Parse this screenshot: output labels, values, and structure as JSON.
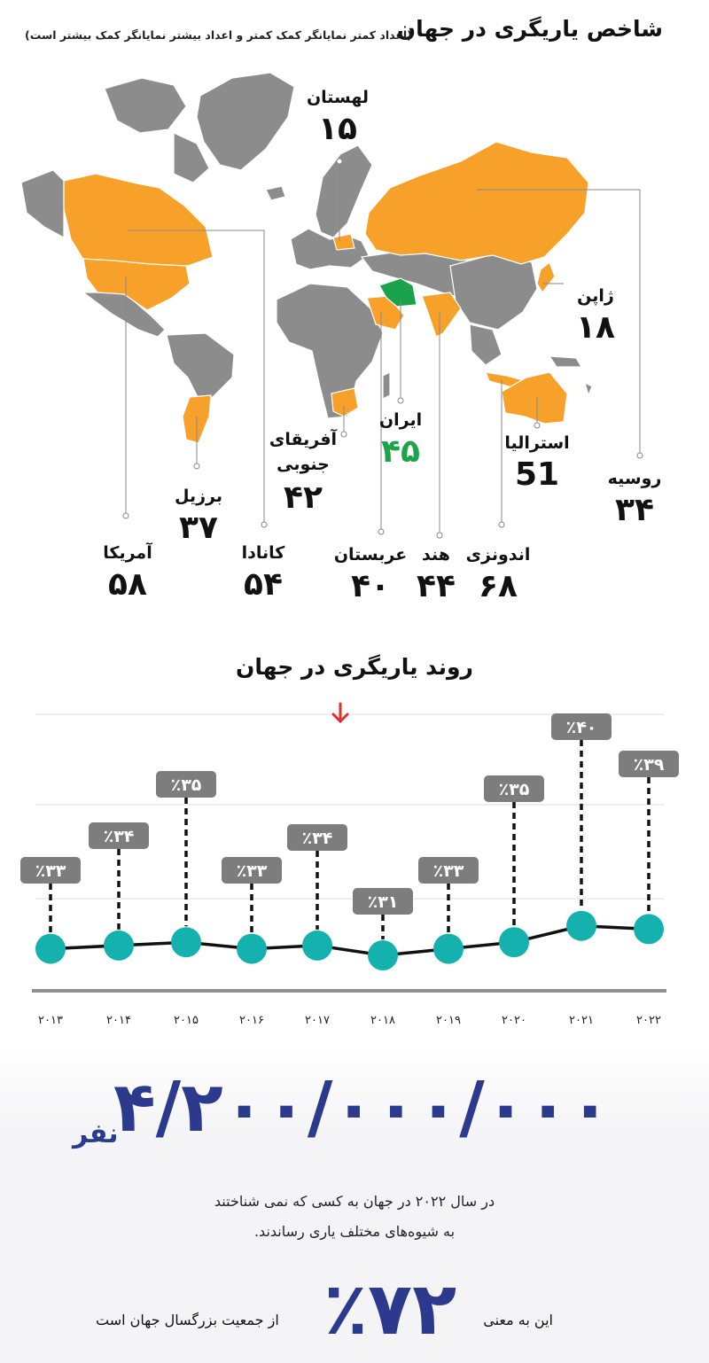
{
  "header": {
    "title": "شاخص یاریگری در جهان",
    "subtitle": "(اعداد کمتر نمایانگر کمک کمتر و اعداد بیشتر نمایانگر کمک بیشتر است)"
  },
  "colors": {
    "highlight": "#f7a12b",
    "iran": "#1ba34b",
    "land": "#8c8c8c",
    "teal": "#14b1ae",
    "navy": "#2b3a8c",
    "badge": "#7d7d7d"
  },
  "chart_data": [
    {
      "type": "map",
      "title": "شاخص یاریگری در جهان",
      "countries": [
        {
          "name": "لهستان",
          "value_label": "۱۵",
          "value": 15
        },
        {
          "name": "ژاپن",
          "value_label": "۱۸",
          "value": 18
        },
        {
          "name": "روسیه",
          "value_label": "۳۴",
          "value": 34
        },
        {
          "name": "استرالیا",
          "value_label": "51",
          "value": 51
        },
        {
          "name": "ایران",
          "value_label": "۴۵",
          "value": 45
        },
        {
          "name": "آفریقای جنوبی",
          "value_label": "۴۲",
          "value": 42
        },
        {
          "name": "برزیل",
          "value_label": "۳۷",
          "value": 37
        },
        {
          "name": "آمریکا",
          "value_label": "۵۸",
          "value": 58
        },
        {
          "name": "کانادا",
          "value_label": "۵۴",
          "value": 54
        },
        {
          "name": "عربستان",
          "value_label": "۴۰",
          "value": 40
        },
        {
          "name": "هند",
          "value_label": "۴۴",
          "value": 44
        },
        {
          "name": "اندونزی",
          "value_label": "۶۸",
          "value": 68
        }
      ]
    },
    {
      "type": "line",
      "title": "روند یاریگری در جهان",
      "x": [
        "۲۰۱۳",
        "۲۰۱۴",
        "۲۰۱۵",
        "۲۰۱۶",
        "۲۰۱۷",
        "۲۰۱۸",
        "۲۰۱۹",
        "۲۰۲۰",
        "۲۰۲۱",
        "۲۰۲۲"
      ],
      "values": [
        33,
        34,
        35,
        33,
        34,
        31,
        33,
        35,
        40,
        39
      ],
      "value_labels": [
        "٪۳۳",
        "٪۳۴",
        "٪۳۵",
        "٪۳۳",
        "٪۳۴",
        "٪۳۱",
        "٪۳۳",
        "٪۳۵",
        "٪۴۰",
        "٪۳۹"
      ],
      "grid": true
    }
  ],
  "summary": {
    "big_number": "۴/۲۰۰/۰۰۰/۰۰۰",
    "unit": "نفر",
    "line1": "در سال ۲۰۲۲ در جهان به کسی که نمی شناختند",
    "line2": "به شیوه‌های مختلف یاری رساندند.",
    "percent": "٪۷۲",
    "meaning": "این به معنی",
    "rest": "از جمعیت بزرگسال جهان است"
  }
}
